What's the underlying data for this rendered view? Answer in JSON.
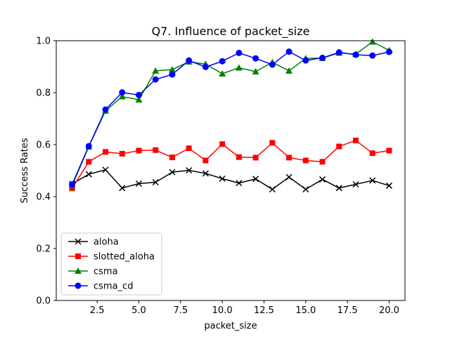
{
  "chart_data": {
    "type": "line",
    "title": "Q7. Influence of packet_size",
    "xlabel": "packet_size",
    "ylabel": "Success Rates",
    "xlim": [
      0.05,
      20.95
    ],
    "ylim": [
      0.0,
      1.0
    ],
    "xticks": [
      2.5,
      5.0,
      7.5,
      10.0,
      12.5,
      15.0,
      17.5,
      20.0
    ],
    "xtick_labels": [
      "2.5",
      "5.0",
      "7.5",
      "10.0",
      "12.5",
      "15.0",
      "17.5",
      "20.0"
    ],
    "yticks": [
      0.0,
      0.2,
      0.4,
      0.6,
      0.8,
      1.0
    ],
    "ytick_labels": [
      "0.0",
      "0.2",
      "0.4",
      "0.6",
      "0.8",
      "1.0"
    ],
    "legend_position": "lower-left",
    "x": [
      1,
      2,
      3,
      4,
      5,
      6,
      7,
      8,
      9,
      10,
      11,
      12,
      13,
      14,
      15,
      16,
      17,
      18,
      19,
      20
    ],
    "series": [
      {
        "name": "aloha",
        "color": "#000000",
        "marker": "x",
        "values": [
          0.449,
          0.486,
          0.503,
          0.433,
          0.45,
          0.455,
          0.494,
          0.501,
          0.489,
          0.469,
          0.452,
          0.468,
          0.428,
          0.475,
          0.428,
          0.466,
          0.433,
          0.447,
          0.462,
          0.442
        ]
      },
      {
        "name": "slotted_aloha",
        "color": "#ff0000",
        "marker": "square",
        "values": [
          0.432,
          0.534,
          0.572,
          0.565,
          0.577,
          0.579,
          0.551,
          0.586,
          0.539,
          0.602,
          0.552,
          0.55,
          0.607,
          0.55,
          0.539,
          0.534,
          0.593,
          0.616,
          0.567,
          0.577
        ]
      },
      {
        "name": "csma",
        "color": "#008000",
        "marker": "triangle",
        "values": [
          0.442,
          0.592,
          0.73,
          0.785,
          0.773,
          0.884,
          0.889,
          0.919,
          0.91,
          0.873,
          0.896,
          0.881,
          0.917,
          0.884,
          0.932,
          0.933,
          0.953,
          0.948,
          0.996,
          0.963
        ]
      },
      {
        "name": "csma_cd",
        "color": "#0000ff",
        "marker": "circle",
        "values": [
          0.447,
          0.594,
          0.735,
          0.801,
          0.791,
          0.851,
          0.87,
          0.924,
          0.899,
          0.921,
          0.953,
          0.932,
          0.908,
          0.958,
          0.924,
          0.934,
          0.955,
          0.946,
          0.943,
          0.957
        ]
      }
    ]
  }
}
